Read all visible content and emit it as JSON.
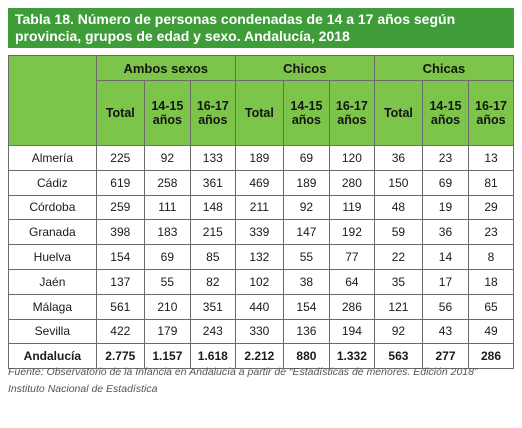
{
  "title": "Tabla 18. Número de personas condenadas de 14 a 17 años según provincia, grupos de edad y sexo. Andalucía, 2018",
  "groups": [
    "Ambos sexos",
    "Chicos",
    "Chicas"
  ],
  "subheaders": [
    "Total",
    "14-15 años",
    "16-17 años",
    "Total",
    "14-15 años",
    "16-17 años",
    "Total",
    "14-15 años",
    "16-17 años"
  ],
  "rows": [
    [
      "Almería",
      "225",
      "92",
      "133",
      "189",
      "69",
      "120",
      "36",
      "23",
      "13"
    ],
    [
      "Cádiz",
      "619",
      "258",
      "361",
      "469",
      "189",
      "280",
      "150",
      "69",
      "81"
    ],
    [
      "Córdoba",
      "259",
      "111",
      "148",
      "211",
      "92",
      "119",
      "48",
      "19",
      "29"
    ],
    [
      "Granada",
      "398",
      "183",
      "215",
      "339",
      "147",
      "192",
      "59",
      "36",
      "23"
    ],
    [
      "Huelva",
      "154",
      "69",
      "85",
      "132",
      "55",
      "77",
      "22",
      "14",
      "8"
    ],
    [
      "Jaén",
      "137",
      "55",
      "82",
      "102",
      "38",
      "64",
      "35",
      "17",
      "18"
    ],
    [
      "Málaga",
      "561",
      "210",
      "351",
      "440",
      "154",
      "286",
      "121",
      "56",
      "65"
    ],
    [
      "Sevilla",
      "422",
      "179",
      "243",
      "330",
      "136",
      "194",
      "92",
      "43",
      "49"
    ]
  ],
  "total_row": [
    "Andalucía",
    "2.775",
    "1.157",
    "1.618",
    "2.212",
    "880",
    "1.332",
    "563",
    "277",
    "286"
  ],
  "source": "Fuente: Observatorio de la Infancia en Andalucía a partir de “Estadísticas de menores. Edición 2018” Instituto Nacional de Estadística",
  "colors": {
    "title_bg": "#3e9d39",
    "header_bg": "#7dc44a",
    "border": "#6b6b6b",
    "source_text": "#555555"
  }
}
